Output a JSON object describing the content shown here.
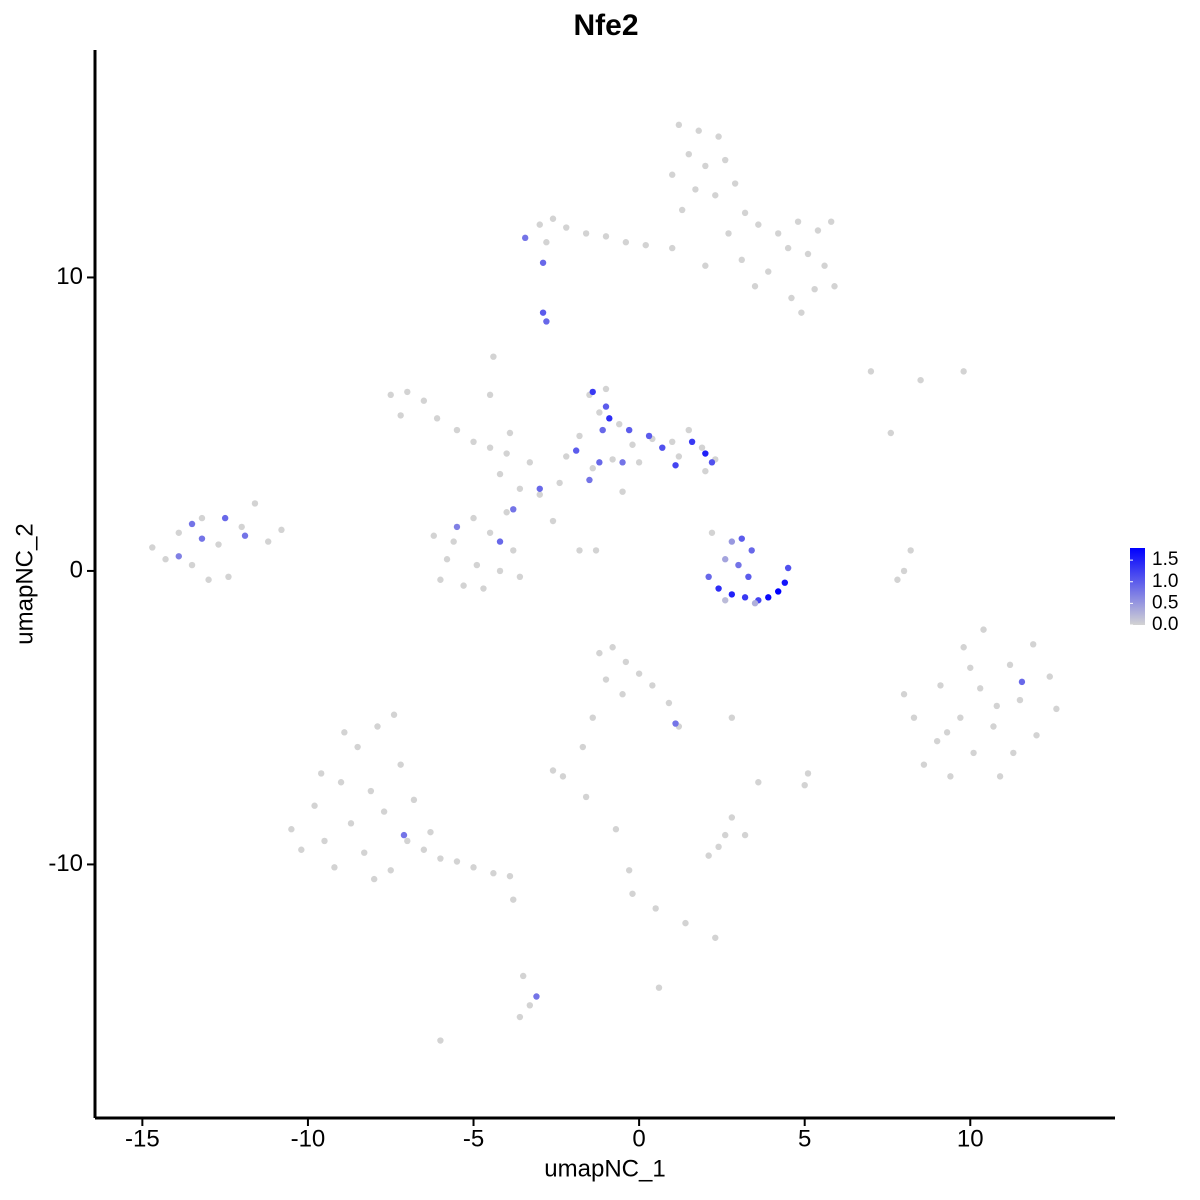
{
  "chart_data": {
    "type": "scatter",
    "title": "Nfe2",
    "x_label": "umapNC_1",
    "y_label": "umapNC_2",
    "xlim": [
      -16.43,
      14.37
    ],
    "ylim": [
      -18.64,
      17.75
    ],
    "xticks": [
      -15,
      -10,
      -5,
      0,
      5,
      10
    ],
    "yticks": [
      -10,
      0,
      10
    ],
    "low_color": "#d3d3d3",
    "high_color": "#0000ff",
    "colorbar": {
      "lim": [
        0,
        1.78
      ],
      "ticks": [
        {
          "value": 0,
          "label": "0.0"
        },
        {
          "value": 0.5,
          "label": "0.5"
        },
        {
          "value": 1,
          "label": "1.0"
        },
        {
          "value": 1.5,
          "label": "1.5"
        }
      ]
    },
    "x": [
      1.2,
      1.8,
      2.4,
      1.5,
      2.0,
      2.6,
      1.0,
      1.7,
      2.3,
      2.9,
      1.3,
      3.2,
      3.6,
      4.2,
      4.8,
      5.4,
      5.8,
      4.5,
      5.1,
      5.6,
      5.9,
      5.3,
      4.6,
      4.9,
      3.9,
      3.1,
      2.0,
      1.0,
      2.7,
      3.5,
      -3.0,
      -2.6,
      -2.2,
      -1.6,
      -1.0,
      -0.4,
      0.2,
      -2.8,
      -2.9,
      -2.8,
      -3.44,
      -2.9,
      -7.5,
      -7.0,
      -6.5,
      -7.2,
      -6.1,
      -5.5,
      -5.0,
      -4.5,
      -4.0,
      -6.2,
      -5.8,
      -6.0,
      -5.3,
      -4.7,
      -4.2,
      -3.8,
      -4.5,
      -5.0,
      -5.6,
      -4.0,
      -3.6,
      -4.9,
      -4.2,
      -3.6,
      -3.0,
      -2.4,
      -3.3,
      -3.9,
      -4.4,
      -4.5,
      -2.6,
      -1.8,
      -1.3,
      -1.5,
      -1.0,
      -1.2,
      -0.6,
      -1.8,
      -0.2,
      0.4,
      1.0,
      1.5,
      1.9,
      2.3,
      2.0,
      1.2,
      0.0,
      -0.8,
      -1.4,
      -2.2,
      -0.5,
      -1.4,
      -1.0,
      -0.9,
      -1.9,
      -1.2,
      0.3,
      0.7,
      1.6,
      2.2,
      2.0,
      -1.5,
      -3.0,
      -3.8,
      -4.2,
      -5.5,
      -0.5,
      -1.1,
      1.1,
      -0.3,
      2.2,
      2.8,
      3.1,
      3.4,
      2.6,
      3.0,
      2.1,
      2.4,
      2.8,
      3.2,
      3.6,
      3.9,
      4.2,
      4.4,
      4.5,
      3.5,
      2.6,
      3.3,
      8.0,
      8.3,
      8.6,
      9.0,
      9.1,
      9.4,
      9.7,
      9.8,
      10.1,
      10.3,
      10.4,
      10.7,
      10.9,
      11.2,
      11.3,
      11.5,
      11.9,
      12.0,
      12.4,
      12.6,
      10.0,
      10.8,
      9.3,
      11.56,
      8.2,
      8.0,
      7.8,
      7.0,
      8.5,
      9.8,
      7.6,
      -14.7,
      -14.3,
      -13.9,
      -13.5,
      -13.2,
      -12.7,
      -12.4,
      -12.0,
      -11.6,
      -11.2,
      -10.8,
      -13.0,
      -13.5,
      -12.5,
      -11.9,
      -13.9,
      -13.2,
      -10.5,
      -10.2,
      -9.8,
      -9.5,
      -9.2,
      -9.0,
      -8.7,
      -8.5,
      -8.3,
      -8.1,
      -7.9,
      -7.7,
      -7.5,
      -7.2,
      -7.0,
      -6.8,
      -8.9,
      -9.6,
      -8.0,
      -7.4,
      -6.5,
      -6.0,
      -5.5,
      -5.0,
      -4.4,
      -3.9,
      -6.3,
      -7.1,
      -1.2,
      -0.8,
      -0.4,
      0.0,
      0.4,
      -1.0,
      -0.5,
      0.9,
      1.2,
      -1.4,
      -1.7,
      1.1,
      -2.6,
      -2.3,
      -1.6,
      -0.7,
      -0.3,
      -0.2,
      0.5,
      1.4,
      2.3,
      2.4,
      2.6,
      2.1,
      3.2,
      2.8,
      3.6,
      5.0,
      5.1,
      2.8,
      -3.8,
      -3.5,
      -3.3,
      -3.6,
      -3.1,
      -6.0,
      0.6
    ],
    "y": [
      15.2,
      15.0,
      14.8,
      14.2,
      13.8,
      14.0,
      13.5,
      13.0,
      12.8,
      13.2,
      12.3,
      12.2,
      11.8,
      11.5,
      11.9,
      11.6,
      11.9,
      11.0,
      10.8,
      10.4,
      9.7,
      9.6,
      9.3,
      8.8,
      10.2,
      10.6,
      10.4,
      11.0,
      11.5,
      9.7,
      11.8,
      12.0,
      11.7,
      11.5,
      11.4,
      11.2,
      11.1,
      11.2,
      8.8,
      8.5,
      11.35,
      10.5,
      6.0,
      6.1,
      5.8,
      5.3,
      5.2,
      4.8,
      4.4,
      4.2,
      4.0,
      1.2,
      0.4,
      -0.3,
      -0.5,
      -0.6,
      0.0,
      0.7,
      1.3,
      1.8,
      1.0,
      2.0,
      -0.2,
      0.2,
      3.3,
      2.8,
      2.6,
      3.0,
      3.7,
      4.7,
      7.3,
      6.0,
      1.7,
      0.7,
      0.7,
      6.0,
      6.2,
      5.4,
      5.0,
      4.6,
      4.3,
      4.5,
      4.4,
      4.8,
      4.2,
      3.8,
      3.4,
      3.9,
      3.7,
      3.8,
      3.5,
      3.9,
      2.7,
      6.1,
      5.6,
      5.2,
      4.1,
      3.7,
      4.6,
      4.2,
      4.4,
      3.7,
      4.0,
      3.1,
      2.8,
      2.1,
      1.0,
      1.5,
      3.7,
      4.8,
      3.6,
      4.8,
      1.3,
      1.0,
      1.1,
      0.7,
      0.4,
      0.2,
      -0.2,
      -0.6,
      -0.8,
      -0.9,
      -1.0,
      -0.9,
      -0.7,
      -0.4,
      0.1,
      -1.1,
      -1.0,
      -0.2,
      -4.2,
      -5.0,
      -6.6,
      -5.8,
      -3.9,
      -7.0,
      -5.0,
      -2.6,
      -6.2,
      -4.0,
      -2.0,
      -5.3,
      -7.0,
      -3.2,
      -6.2,
      -4.4,
      -2.5,
      -5.6,
      -3.6,
      -4.7,
      -3.3,
      -4.6,
      -5.5,
      -3.78,
      0.7,
      0.0,
      -0.3,
      6.8,
      6.5,
      6.8,
      4.7,
      0.8,
      0.4,
      1.3,
      0.2,
      1.8,
      0.9,
      -0.2,
      1.5,
      2.3,
      1.0,
      1.4,
      -0.3,
      1.6,
      1.8,
      1.2,
      0.5,
      1.1,
      -8.8,
      -9.5,
      -8.0,
      -9.2,
      -10.1,
      -7.2,
      -8.6,
      -6.0,
      -9.6,
      -7.5,
      -5.3,
      -8.2,
      -10.2,
      -6.6,
      -9.2,
      -7.8,
      -5.5,
      -6.9,
      -10.5,
      -4.9,
      -9.5,
      -9.8,
      -9.9,
      -10.1,
      -10.3,
      -10.4,
      -8.9,
      -9.0,
      -2.8,
      -2.6,
      -3.1,
      -3.5,
      -3.9,
      -3.7,
      -4.2,
      -4.5,
      -5.3,
      -5.0,
      -6.0,
      -5.2,
      -6.8,
      -7.0,
      -7.7,
      -8.8,
      -10.2,
      -11.0,
      -11.5,
      -12.0,
      -12.5,
      -9.4,
      -9.0,
      -9.7,
      -9.0,
      -8.4,
      -7.2,
      -7.3,
      -6.9,
      -5.0,
      -11.2,
      -13.8,
      -14.8,
      -15.2,
      -14.5,
      -16.0,
      -14.2
    ],
    "values": [
      0,
      0,
      0,
      0,
      0,
      0,
      0,
      0,
      0,
      0,
      0,
      0,
      0,
      0,
      0,
      0,
      0,
      0,
      0,
      0,
      0,
      0,
      0,
      0,
      0,
      0,
      0,
      0,
      0,
      0,
      0,
      0,
      0,
      0,
      0,
      0,
      0,
      0,
      1.0,
      0.9,
      0.8,
      0.9,
      0,
      0,
      0,
      0,
      0,
      0,
      0,
      0,
      0,
      0,
      0,
      0,
      0,
      0,
      0,
      0,
      0,
      0,
      0,
      0,
      0,
      0,
      0,
      0,
      0,
      0,
      0,
      0,
      0,
      0,
      0,
      0,
      0,
      0,
      0,
      0,
      0,
      0,
      0,
      0,
      0,
      0,
      0,
      0,
      0,
      0,
      0,
      0,
      0,
      0,
      0,
      1.3,
      1.0,
      1.4,
      1.0,
      0.9,
      1.0,
      1.1,
      1.3,
      1.1,
      1.5,
      0.8,
      0.9,
      0.8,
      0.9,
      0.7,
      0.8,
      0.9,
      1.2,
      1.0,
      0,
      0.5,
      1.0,
      0.9,
      0.4,
      0.8,
      0.9,
      1.4,
      1.5,
      1.3,
      1.2,
      1.7,
      1.8,
      1.6,
      1.1,
      0.3,
      0.2,
      1.0,
      0,
      0,
      0,
      0,
      0,
      0,
      0,
      0,
      0,
      0,
      0,
      0,
      0,
      0,
      0,
      0,
      0,
      0,
      0,
      0,
      0,
      0,
      0,
      0.9,
      0,
      0,
      0,
      0,
      0,
      0,
      0,
      0,
      0,
      0,
      0,
      0,
      0,
      0,
      0,
      0,
      0,
      0,
      0,
      0.8,
      0.9,
      0.8,
      0.7,
      0.8,
      0,
      0,
      0,
      0,
      0,
      0,
      0,
      0,
      0,
      0,
      0,
      0,
      0,
      0,
      0,
      0,
      0,
      0,
      0,
      0,
      0,
      0,
      0,
      0,
      0,
      0,
      0,
      0.8,
      0,
      0,
      0,
      0,
      0,
      0,
      0,
      0,
      0,
      0,
      0,
      0.8,
      0,
      0,
      0,
      0,
      0,
      0,
      0,
      0,
      0,
      0,
      0,
      0,
      0,
      0,
      0,
      0,
      0,
      0,
      0,
      0,
      0,
      0,
      0.8,
      0,
      0
    ]
  }
}
